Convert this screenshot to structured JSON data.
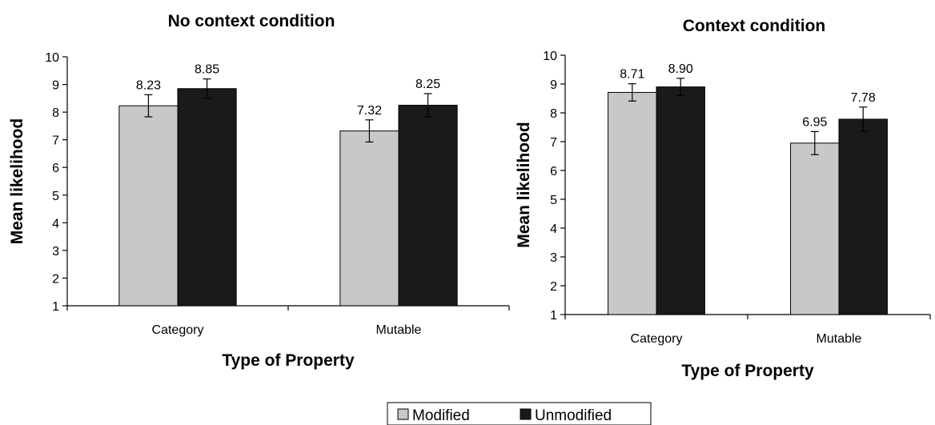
{
  "chart_data": [
    {
      "type": "bar",
      "title": "No context condition",
      "xlabel": "Type of Property",
      "ylabel": "Mean likelihood",
      "ylim": [
        1,
        10
      ],
      "yticks": [
        "1",
        "2",
        "3",
        "4",
        "5",
        "6",
        "7",
        "8",
        "9",
        "10"
      ],
      "categories": [
        "Category",
        "Mutable"
      ],
      "series": [
        {
          "name": "Modified",
          "values": [
            8.23,
            7.32
          ],
          "labels": [
            "8.23",
            "7.32"
          ],
          "error": [
            0.4,
            0.4
          ],
          "color": "#c8c8c8"
        },
        {
          "name": "Unmodified",
          "values": [
            8.85,
            8.25
          ],
          "labels": [
            "8.85",
            "8.25"
          ],
          "error": [
            0.35,
            0.42
          ],
          "color": "#1a1a1a"
        }
      ],
      "grid": false
    },
    {
      "type": "bar",
      "title": "Context condition",
      "xlabel": "Type of Property",
      "ylabel": "Mean likelihood",
      "ylim": [
        1,
        10
      ],
      "yticks": [
        "1",
        "2",
        "3",
        "4",
        "5",
        "6",
        "7",
        "8",
        "9",
        "10"
      ],
      "categories": [
        "Category",
        "Mutable"
      ],
      "series": [
        {
          "name": "Modified",
          "values": [
            8.71,
            6.95
          ],
          "labels": [
            "8.71",
            "6.95"
          ],
          "error": [
            0.3,
            0.4
          ],
          "color": "#c8c8c8"
        },
        {
          "name": "Unmodified",
          "values": [
            8.9,
            7.78
          ],
          "labels": [
            "8.90",
            "7.78"
          ],
          "error": [
            0.3,
            0.42
          ],
          "color": "#1a1a1a"
        }
      ],
      "grid": false
    }
  ],
  "legend": {
    "position": "bottom-center",
    "items": [
      {
        "label": "Modified",
        "color": "#c8c8c8"
      },
      {
        "label": "Unmodified",
        "color": "#1a1a1a"
      }
    ]
  }
}
